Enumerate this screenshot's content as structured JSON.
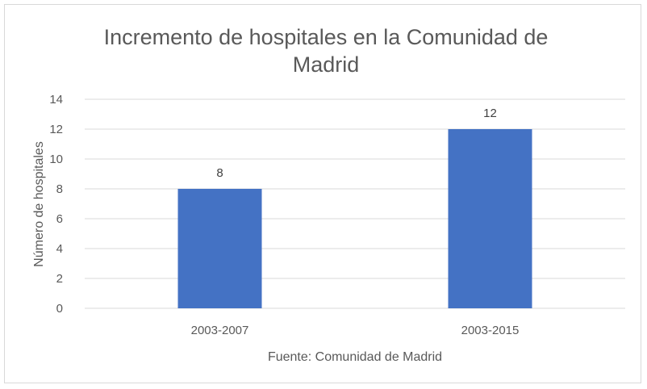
{
  "chart_data": {
    "type": "bar",
    "title_lines": [
      "Incremento de hospitales en la Comunidad de",
      "Madrid"
    ],
    "categories": [
      "2003-2007",
      "2003-2015"
    ],
    "values": [
      8,
      12
    ],
    "data_labels": [
      "8",
      "12"
    ],
    "xlabel": "Fuente: Comunidad de Madrid",
    "ylabel": "Número de hospitales",
    "ylim": [
      0,
      14
    ],
    "yticks": [
      0,
      2,
      4,
      6,
      8,
      10,
      12,
      14
    ],
    "grid": true,
    "legend": "none",
    "colors": {
      "bar": "#4472C4",
      "grid": "#d9d9d9",
      "text": "#595959"
    }
  }
}
